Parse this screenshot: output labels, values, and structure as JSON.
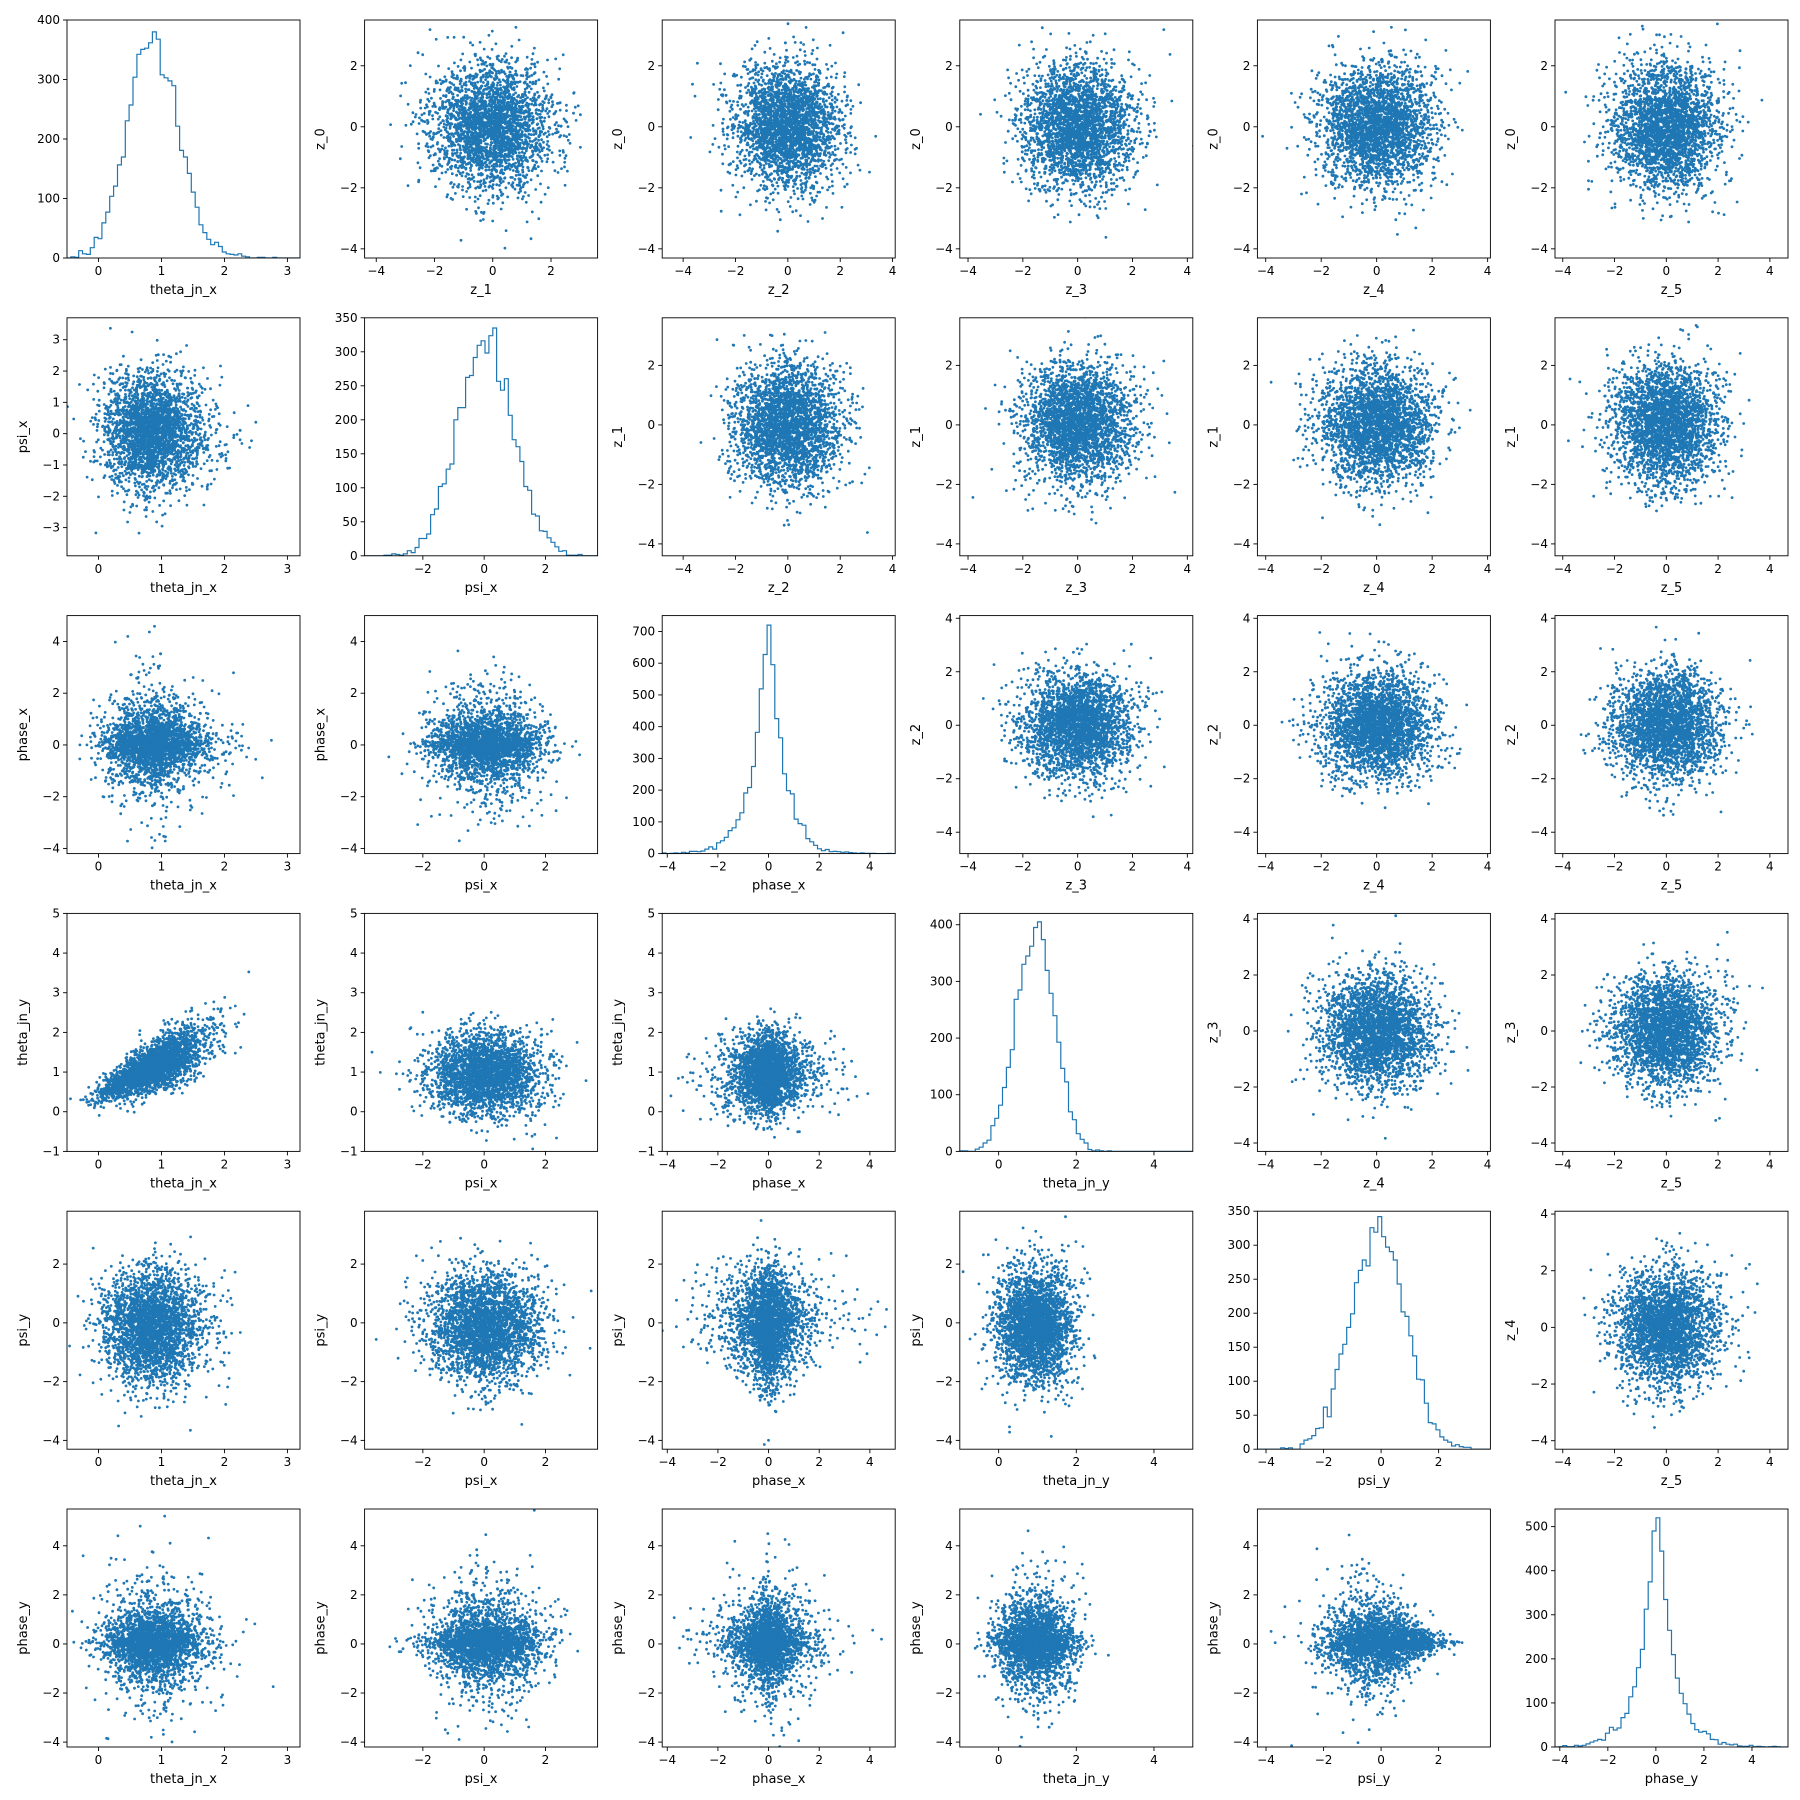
{
  "chart_data": {
    "type": "pair-grid",
    "grid": "6x6",
    "marker_color": "#1f77b4",
    "histogram_color": "#1f77b4",
    "scale": "linear",
    "legend": "none",
    "axes": {
      "theta_jn_x": {
        "lim": [
          -0.5,
          3.2
        ],
        "ticks": [
          0,
          1,
          2,
          3
        ],
        "mean": 0.65,
        "sd": 0.42,
        "skew": true
      },
      "psi_x": {
        "lim": [
          -3.9,
          3.7
        ],
        "ticks": [
          -2,
          0,
          2
        ],
        "mean": 0.05,
        "sd": 0.9
      },
      "phase_x": {
        "lim": [
          -4.2,
          5.0
        ],
        "ticks": [
          -4,
          -2,
          0,
          2,
          4
        ],
        "mean": 0.0,
        "sd": 0.75,
        "laplace": true
      },
      "theta_jn_y": {
        "lim": [
          -1.0,
          5.0
        ],
        "ticks": [
          0,
          2,
          4
        ],
        "mean": 0.95,
        "sd": 0.5
      },
      "psi_y": {
        "lim": [
          -4.3,
          3.8
        ],
        "ticks": [
          -4,
          -2,
          0,
          2
        ],
        "mean": -0.1,
        "sd": 0.95
      },
      "phase_y": {
        "lim": [
          -4.2,
          5.5
        ],
        "ticks": [
          -4,
          -2,
          0,
          2,
          4
        ],
        "mean": 0.05,
        "sd": 0.85,
        "laplace": true
      },
      "z_0": {
        "lim": [
          -4.3,
          3.5
        ],
        "ticks": [
          -4,
          -2,
          0,
          2
        ],
        "mean": 0,
        "sd": 1
      },
      "z_1": {
        "lim": [
          -4.4,
          3.6
        ],
        "ticks": [
          -4,
          -2,
          0,
          2
        ],
        "mean": 0,
        "sd": 1
      },
      "z_2": {
        "lim": [
          -4.8,
          4.1
        ],
        "ticks": [
          -4,
          -2,
          0,
          2,
          4
        ],
        "mean": 0,
        "sd": 1
      },
      "z_3": {
        "lim": [
          -4.3,
          4.2
        ],
        "ticks": [
          -4,
          -2,
          0,
          2,
          4
        ],
        "mean": 0,
        "sd": 1
      },
      "z_4": {
        "lim": [
          -4.3,
          4.1
        ],
        "ticks": [
          -4,
          -2,
          0,
          2,
          4
        ],
        "mean": 0,
        "sd": 1
      },
      "z_5": {
        "lim": [
          -4.3,
          4.7
        ],
        "ticks": [
          -4,
          -2,
          0,
          2,
          4
        ],
        "mean": 0,
        "sd": 1
      }
    },
    "panels": [
      [
        {
          "kind": "hist",
          "x": "theta_jn_x",
          "ylim": [
            0,
            400
          ],
          "yticks": [
            0,
            100,
            200,
            300,
            400
          ],
          "peak": 380
        },
        {
          "kind": "scatter",
          "x": "z_1",
          "y": "z_0"
        },
        {
          "kind": "scatter",
          "x": "z_2",
          "y": "z_0"
        },
        {
          "kind": "scatter",
          "x": "z_3",
          "y": "z_0"
        },
        {
          "kind": "scatter",
          "x": "z_4",
          "y": "z_0"
        },
        {
          "kind": "scatter",
          "x": "z_5",
          "y": "z_0"
        }
      ],
      [
        {
          "kind": "scatter",
          "x": "theta_jn_x",
          "y": "psi_x",
          "ylim": [
            -3.9,
            3.7
          ],
          "yticks": [
            -3,
            -2,
            -1,
            0,
            1,
            2,
            3
          ]
        },
        {
          "kind": "hist",
          "x": "psi_x",
          "ylim": [
            0,
            350
          ],
          "yticks": [
            0,
            50,
            100,
            150,
            200,
            250,
            300,
            350
          ],
          "peak": 335
        },
        {
          "kind": "scatter",
          "x": "z_2",
          "y": "z_1"
        },
        {
          "kind": "scatter",
          "x": "z_3",
          "y": "z_1"
        },
        {
          "kind": "scatter",
          "x": "z_4",
          "y": "z_1"
        },
        {
          "kind": "scatter",
          "x": "z_5",
          "y": "z_1"
        }
      ],
      [
        {
          "kind": "scatter",
          "x": "theta_jn_x",
          "y": "phase_x"
        },
        {
          "kind": "scatter",
          "x": "psi_x",
          "y": "phase_x"
        },
        {
          "kind": "hist",
          "x": "phase_x",
          "ylim": [
            0,
            750
          ],
          "yticks": [
            0,
            100,
            200,
            300,
            400,
            500,
            600,
            700
          ],
          "peak": 720
        },
        {
          "kind": "scatter",
          "x": "z_3",
          "y": "z_2"
        },
        {
          "kind": "scatter",
          "x": "z_4",
          "y": "z_2"
        },
        {
          "kind": "scatter",
          "x": "z_5",
          "y": "z_2"
        }
      ],
      [
        {
          "kind": "scatter",
          "x": "theta_jn_x",
          "y": "theta_jn_y",
          "ylim": [
            -1.0,
            5.0
          ],
          "yticks": [
            -1,
            0,
            1,
            2,
            3,
            4,
            5
          ],
          "corr": 0.75
        },
        {
          "kind": "scatter",
          "x": "psi_x",
          "y": "theta_jn_y",
          "ylim": [
            -1.0,
            5.0
          ],
          "yticks": [
            -1,
            0,
            1,
            2,
            3,
            4,
            5
          ]
        },
        {
          "kind": "scatter",
          "x": "phase_x",
          "y": "theta_jn_y",
          "ylim": [
            -1.0,
            5.0
          ],
          "yticks": [
            -1,
            0,
            1,
            2,
            3,
            4,
            5
          ]
        },
        {
          "kind": "hist",
          "x": "theta_jn_y",
          "ylim": [
            0,
            420
          ],
          "yticks": [
            0,
            100,
            200,
            300,
            400
          ],
          "peak": 405
        },
        {
          "kind": "scatter",
          "x": "z_4",
          "y": "z_3"
        },
        {
          "kind": "scatter",
          "x": "z_5",
          "y": "z_3"
        }
      ],
      [
        {
          "kind": "scatter",
          "x": "theta_jn_x",
          "y": "psi_y"
        },
        {
          "kind": "scatter",
          "x": "psi_x",
          "y": "psi_y"
        },
        {
          "kind": "scatter",
          "x": "phase_x",
          "y": "psi_y",
          "funnel": true
        },
        {
          "kind": "scatter",
          "x": "theta_jn_y",
          "y": "psi_y"
        },
        {
          "kind": "hist",
          "x": "psi_y",
          "ylim": [
            0,
            350
          ],
          "yticks": [
            0,
            50,
            100,
            150,
            200,
            250,
            300,
            350
          ],
          "peak": 342
        },
        {
          "kind": "scatter",
          "x": "z_5",
          "y": "z_4"
        }
      ],
      [
        {
          "kind": "scatter",
          "x": "theta_jn_x",
          "y": "phase_y"
        },
        {
          "kind": "scatter",
          "x": "psi_x",
          "y": "phase_y"
        },
        {
          "kind": "scatter",
          "x": "phase_x",
          "y": "phase_y"
        },
        {
          "kind": "scatter",
          "x": "theta_jn_y",
          "y": "phase_y"
        },
        {
          "kind": "scatter",
          "x": "psi_y",
          "y": "phase_y",
          "cone": true
        },
        {
          "kind": "hist",
          "x": "phase_y",
          "ylim": [
            0,
            540
          ],
          "yticks": [
            0,
            100,
            200,
            300,
            400,
            500
          ],
          "peak": 520
        }
      ]
    ]
  }
}
